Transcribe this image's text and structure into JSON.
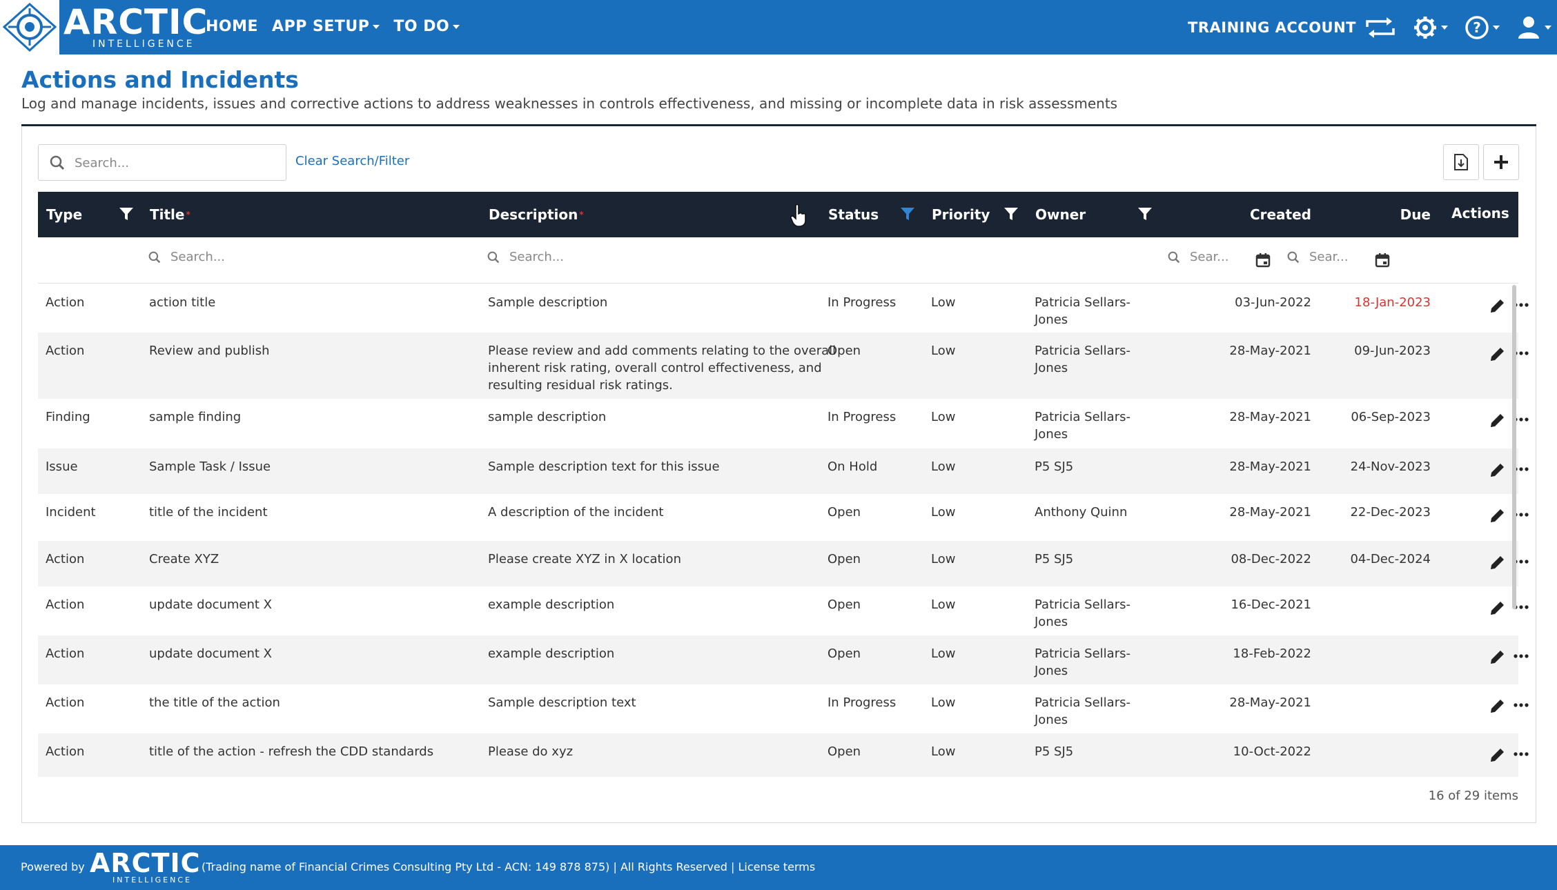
{
  "header": {
    "brand_top": "ARCTIC",
    "brand_bottom": "INTELLIGENCE",
    "nav": [
      {
        "label": "HOME"
      },
      {
        "label": "APP SETUP"
      },
      {
        "label": "TO DO"
      }
    ],
    "account_label": "TRAINING ACCOUNT"
  },
  "page": {
    "title": "Actions and Incidents",
    "subtitle": "Log and manage incidents, issues and corrective actions to address weaknesses in controls effectiveness, and missing or incomplete data in risk assessments"
  },
  "toolbar": {
    "search_placeholder": "Search...",
    "clear_label": "Clear Search/Filter"
  },
  "table": {
    "columns": {
      "type": "Type",
      "title": "Title",
      "description": "Description",
      "status": "Status",
      "priority": "Priority",
      "owner": "Owner",
      "created": "Created",
      "due": "Due",
      "actions": "Actions"
    },
    "filter_placeholders": {
      "title": "Search...",
      "description": "Search...",
      "created": "Sear...",
      "due": "Sear..."
    },
    "rows": [
      {
        "type": "Action",
        "title": "action title",
        "description": "Sample description",
        "status": "In Progress",
        "priority": "Low",
        "owner": "Patricia Sellars-Jones",
        "created": "03-Jun-2022",
        "due": "18-Jan-2023",
        "overdue": true
      },
      {
        "type": "Action",
        "title": "Review and publish",
        "description": "Please review and add comments relating to the overall inherent risk rating, overall control effectiveness, and resulting residual risk ratings.",
        "status": "Open",
        "priority": "Low",
        "owner": "Patricia Sellars-Jones",
        "created": "28-May-2021",
        "due": "09-Jun-2023"
      },
      {
        "type": "Finding",
        "title": "sample finding",
        "description": "sample description",
        "status": "In Progress",
        "priority": "Low",
        "owner": "Patricia Sellars-Jones",
        "created": "28-May-2021",
        "due": "06-Sep-2023"
      },
      {
        "type": "Issue",
        "title": "Sample Task / Issue",
        "description": "Sample description text for this issue",
        "status": "On Hold",
        "priority": "Low",
        "owner": "P5 SJ5",
        "created": "28-May-2021",
        "due": "24-Nov-2023"
      },
      {
        "type": "Incident",
        "title": "title of the incident",
        "description": "A description of the incident",
        "status": "Open",
        "priority": "Low",
        "owner": "Anthony Quinn",
        "created": "28-May-2021",
        "due": "22-Dec-2023"
      },
      {
        "type": "Action",
        "title": "Create XYZ",
        "description": "Please create XYZ in X location",
        "status": "Open",
        "priority": "Low",
        "owner": "P5 SJ5",
        "created": "08-Dec-2022",
        "due": "04-Dec-2024"
      },
      {
        "type": "Action",
        "title": "update document X",
        "description": "example description",
        "status": "Open",
        "priority": "Low",
        "owner": "Patricia Sellars-Jones",
        "created": "16-Dec-2021",
        "due": ""
      },
      {
        "type": "Action",
        "title": "update document X",
        "description": "example description",
        "status": "Open",
        "priority": "Low",
        "owner": "Patricia Sellars-Jones",
        "created": "18-Feb-2022",
        "due": ""
      },
      {
        "type": "Action",
        "title": "the title of the action",
        "description": "Sample description text",
        "status": "In Progress",
        "priority": "Low",
        "owner": "Patricia Sellars-Jones",
        "created": "28-May-2021",
        "due": ""
      },
      {
        "type": "Action",
        "title": "title of the action - refresh the CDD standards",
        "description": "Please do xyz",
        "status": "Open",
        "priority": "Low",
        "owner": "P5 SJ5",
        "created": "10-Oct-2022",
        "due": ""
      }
    ],
    "items_count": "16 of 29 items"
  },
  "footer": {
    "powered_by": "Powered by",
    "brand_top": "ARCTIC",
    "brand_bottom": "INTELLIGENCE",
    "legal": "(Trading name of Financial Crimes Consulting Pty Ltd - ACN: 149 878 875)",
    "rights": "All Rights Reserved",
    "license": "License terms"
  },
  "colors": {
    "brand_blue": "#1a6fbd",
    "header_dark": "#1b2433",
    "overdue_red": "#e03131"
  }
}
